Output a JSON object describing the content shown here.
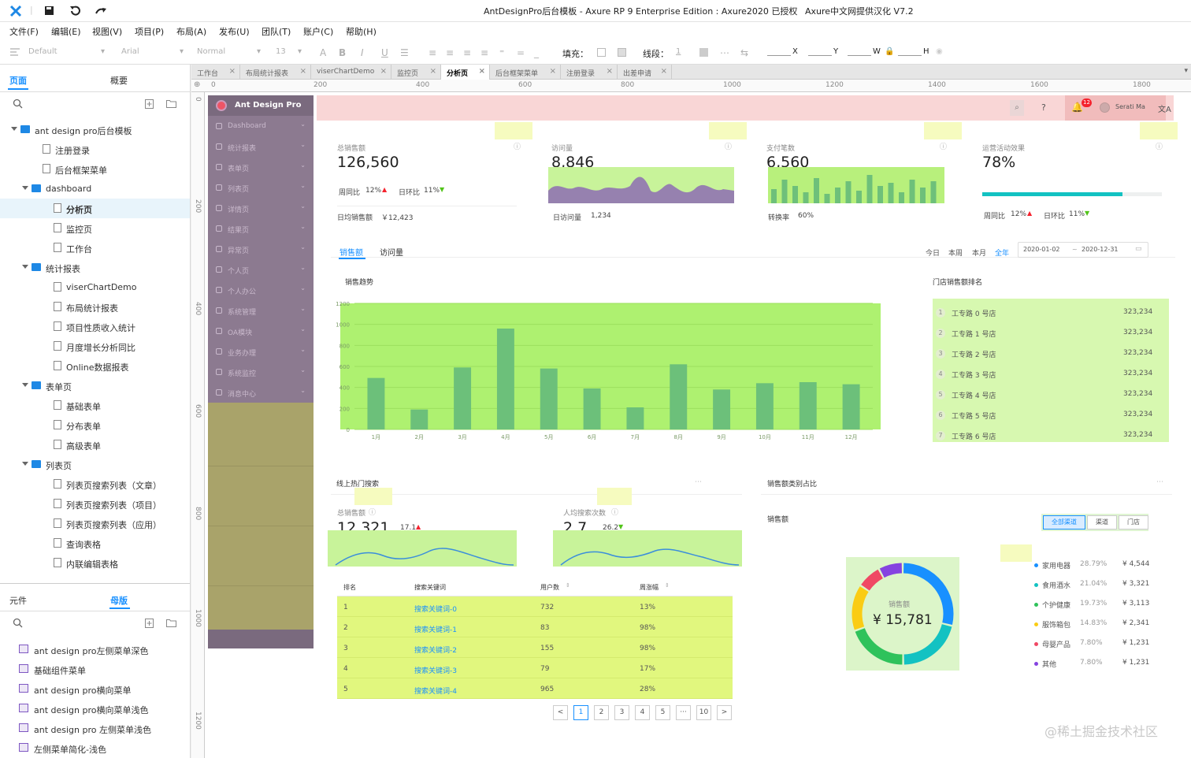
{
  "title_bar": {
    "title": "AntDesignPro后台模板 - Axure RP 9 Enterprise Edition : Axure2020 已授权",
    "subtitle": "Axure中文网提供汉化 V7.2"
  },
  "menu": [
    "文件(F)",
    "编辑(E)",
    "视图(V)",
    "项目(P)",
    "布局(A)",
    "发布(U)",
    "团队(T)",
    "账户(C)",
    "帮助(H)"
  ],
  "toolbar": {
    "style": "Default",
    "font": "Arial",
    "weight": "Normal",
    "size": "13",
    "fill_label": "填充：",
    "stroke_label": "线段：",
    "stroke_val": "1",
    "x_label": "X",
    "y_label": "Y",
    "w_label": "W",
    "h_label": "H"
  },
  "pages_panel": {
    "tab_pages": "页面",
    "tab_outline": "概要",
    "tree": [
      {
        "label": "ant design pro后台模板",
        "type": "folder",
        "depth": 0
      },
      {
        "label": "注册登录",
        "type": "page",
        "depth": 1
      },
      {
        "label": "后台框架菜单",
        "type": "page",
        "depth": 1
      },
      {
        "label": "dashboard",
        "type": "folder",
        "depth": 1
      },
      {
        "label": "分析页",
        "type": "page",
        "depth": 2,
        "selected": true
      },
      {
        "label": "监控页",
        "type": "page",
        "depth": 2
      },
      {
        "label": "工作台",
        "type": "page",
        "depth": 2
      },
      {
        "label": "统计报表",
        "type": "folder",
        "depth": 1
      },
      {
        "label": "viserChartDemo",
        "type": "page",
        "depth": 2
      },
      {
        "label": "布局统计报表",
        "type": "page",
        "depth": 2
      },
      {
        "label": "项目性质收入统计",
        "type": "page",
        "depth": 2
      },
      {
        "label": "月度增长分析同比",
        "type": "page",
        "depth": 2
      },
      {
        "label": "Online数据报表",
        "type": "page",
        "depth": 2
      },
      {
        "label": "表单页",
        "type": "folder",
        "depth": 1
      },
      {
        "label": "基础表单",
        "type": "page",
        "depth": 2
      },
      {
        "label": "分布表单",
        "type": "page",
        "depth": 2
      },
      {
        "label": "高级表单",
        "type": "page",
        "depth": 2
      },
      {
        "label": "列表页",
        "type": "folder",
        "depth": 1
      },
      {
        "label": "列表页搜索列表（文章）",
        "type": "page",
        "depth": 2
      },
      {
        "label": "列表页搜索列表（项目）",
        "type": "page",
        "depth": 2
      },
      {
        "label": "列表页搜索列表（应用）",
        "type": "page",
        "depth": 2
      },
      {
        "label": "查询表格",
        "type": "page",
        "depth": 2
      },
      {
        "label": "内联编辑表格",
        "type": "page",
        "depth": 2
      }
    ]
  },
  "masters_panel": {
    "tab_widgets": "元件",
    "tab_masters": "母版",
    "items": [
      "ant design pro左侧菜单深色",
      "基础组件菜单",
      "ant design pro横向菜单",
      "ant design pro横向菜单浅色",
      "ant design pro 左侧菜单浅色",
      "左侧菜单简化-浅色"
    ]
  },
  "doc_tabs": [
    {
      "label": "工作台"
    },
    {
      "label": "布局统计报表"
    },
    {
      "label": "viserChartDemo"
    },
    {
      "label": "监控页"
    },
    {
      "label": "分析页",
      "active": true
    },
    {
      "label": "后台框架菜单"
    },
    {
      "label": "注册登录"
    },
    {
      "label": "出差申请"
    }
  ],
  "ruler_h": [
    "0",
    "200",
    "400",
    "600",
    "800",
    "1000",
    "1200",
    "1400",
    "1600",
    "1800"
  ],
  "ruler_v": [
    "0",
    "200",
    "400",
    "600",
    "800",
    "1000",
    "1200"
  ],
  "app": {
    "logo": "Ant Design Pro",
    "menu": [
      "Dashboard",
      "统计报表",
      "表单页",
      "列表页",
      "详情页",
      "结果页",
      "异常页",
      "个人页",
      "个人办公",
      "系统管理",
      "OA模块",
      "业务办理",
      "系统监控",
      "消息中心"
    ],
    "header": {
      "user": "Serati Ma",
      "badge": "12"
    },
    "cards": [
      {
        "title": "总销售额",
        "value": "126,560",
        "m1_label": "周同比",
        "m1_val": "12%",
        "m2_label": "日环比",
        "m2_val": "11%",
        "foot_label": "日均销售额",
        "foot_val": "￥12,423"
      },
      {
        "title": "访问量",
        "value": "8,846",
        "foot_label": "日访问量",
        "foot_val": "1,234"
      },
      {
        "title": "支付笔数",
        "value": "6,560",
        "foot_label": "转换率",
        "foot_val": "60%"
      },
      {
        "title": "运营活动效果",
        "value": "78%",
        "m1_label": "周同比",
        "m1_val": "12%",
        "m2_label": "日环比",
        "m2_val": "11%"
      }
    ],
    "sales": {
      "tab1": "销售额",
      "tab2": "访问量",
      "ranges": [
        "今日",
        "本周",
        "本月",
        "全年"
      ],
      "date_from": "2020-01-02",
      "date_to": "2020-12-31",
      "chart_title": "销售趋势",
      "rank_title": "门店销售额排名",
      "ranks": [
        {
          "n": "1",
          "name": "工专路 0 号店",
          "val": "323,234"
        },
        {
          "n": "2",
          "name": "工专路 1 号店",
          "val": "323,234"
        },
        {
          "n": "3",
          "name": "工专路 2 号店",
          "val": "323,234"
        },
        {
          "n": "4",
          "name": "工专路 3 号店",
          "val": "323,234"
        },
        {
          "n": "5",
          "name": "工专路 4 号店",
          "val": "323,234"
        },
        {
          "n": "6",
          "name": "工专路 5 号店",
          "val": "323,234"
        },
        {
          "n": "7",
          "name": "工专路 6 号店",
          "val": "323,234"
        }
      ]
    },
    "search": {
      "title": "线上热门搜索",
      "s1_title": "总销售额",
      "s1_value": "12,321",
      "s1_delta": "17.1",
      "s2_title": "人均搜索次数",
      "s2_value": "2.7",
      "s2_delta": "26.2",
      "cols": [
        "排名",
        "搜索关键词",
        "用户数",
        "周涨幅"
      ],
      "rows": [
        {
          "rank": "1",
          "kw": "搜索关键词-0",
          "users": "732",
          "rate": "13%"
        },
        {
          "rank": "2",
          "kw": "搜索关键词-1",
          "users": "83",
          "rate": "98%"
        },
        {
          "rank": "3",
          "kw": "搜索关键词-2",
          "users": "155",
          "rate": "98%"
        },
        {
          "rank": "4",
          "kw": "搜索关键词-3",
          "users": "79",
          "rate": "17%"
        },
        {
          "rank": "5",
          "kw": "搜索关键词-4",
          "users": "965",
          "rate": "28%"
        }
      ],
      "pages": [
        "1",
        "2",
        "3",
        "4",
        "5",
        "10"
      ]
    },
    "category": {
      "title": "销售额类别占比",
      "sub": "销售额",
      "filters": [
        "全部渠道",
        "渠道",
        "门店"
      ],
      "center_label": "销售额",
      "center_value": "¥ 15,781",
      "items": [
        {
          "name": "家用电器",
          "pct": "28.79%",
          "val": "¥ 4,544",
          "color": "#1890ff"
        },
        {
          "name": "食用酒水",
          "pct": "21.04%",
          "val": "¥ 3,321",
          "color": "#13c2c2"
        },
        {
          "name": "个护健康",
          "pct": "19.73%",
          "val": "¥ 3,113",
          "color": "#2fc25b"
        },
        {
          "name": "服饰箱包",
          "pct": "14.83%",
          "val": "¥ 2,341",
          "color": "#facc14"
        },
        {
          "name": "母婴产品",
          "pct": "7.80%",
          "val": "¥ 1,231",
          "color": "#f04864"
        },
        {
          "name": "其他",
          "pct": "7.80%",
          "val": "¥ 1,231",
          "color": "#8543e0"
        }
      ]
    }
  },
  "chart_data": [
    {
      "type": "bar",
      "title": "销售趋势",
      "categories": [
        "1月",
        "2月",
        "3月",
        "4月",
        "5月",
        "6月",
        "7月",
        "8月",
        "9月",
        "10月",
        "11月",
        "12月"
      ],
      "values": [
        490,
        190,
        590,
        960,
        580,
        390,
        210,
        620,
        380,
        440,
        450,
        430
      ],
      "yticks": [
        "0",
        "200",
        "400",
        "600",
        "800",
        "1000",
        "1200"
      ],
      "ylim": [
        0,
        1200
      ]
    },
    {
      "type": "pie",
      "title": "销售额类别占比",
      "categories": [
        "家用电器",
        "食用酒水",
        "个护健康",
        "服饰箱包",
        "母婴产品",
        "其他"
      ],
      "values": [
        28.79,
        21.04,
        19.73,
        14.83,
        7.8,
        7.8
      ]
    }
  ],
  "watermark": "@稀土掘金技术社区"
}
